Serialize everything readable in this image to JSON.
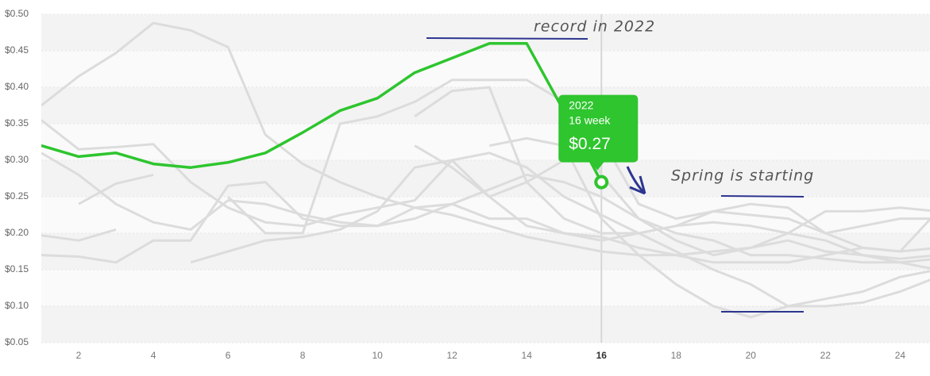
{
  "chart_data": {
    "type": "line",
    "x": [
      1,
      2,
      3,
      4,
      5,
      6,
      7,
      8,
      9,
      10,
      11,
      12,
      13,
      14,
      15,
      16,
      17,
      18,
      19,
      20,
      21,
      22,
      23,
      24,
      25
    ],
    "xlim": [
      1,
      24.8
    ],
    "xticks": [
      2,
      4,
      6,
      8,
      10,
      12,
      14,
      16,
      18,
      20,
      22,
      24
    ],
    "ylim": [
      0.05,
      0.5
    ],
    "yticks": [
      {
        "value": 0.05,
        "label": "$0.05"
      },
      {
        "value": 0.1,
        "label": "$0.10"
      },
      {
        "value": 0.15,
        "label": "$0.15"
      },
      {
        "value": 0.2,
        "label": "$0.20"
      },
      {
        "value": 0.25,
        "label": "$0.25"
      },
      {
        "value": 0.3,
        "label": "$0.30"
      },
      {
        "value": 0.35,
        "label": "$0.35"
      },
      {
        "value": 0.4,
        "label": "$0.40"
      },
      {
        "value": 0.45,
        "label": "$0.45"
      },
      {
        "value": 0.5,
        "label": "$0.50"
      }
    ],
    "grid": true,
    "series": [
      {
        "name": "2022",
        "color": "#2ec52e",
        "values": [
          0.32,
          0.305,
          0.31,
          0.295,
          0.29,
          0.297,
          0.31,
          0.338,
          0.368,
          0.385,
          0.42,
          0.44,
          0.46,
          0.46,
          0.367,
          0.27,
          null,
          null,
          null,
          null,
          null,
          null,
          null,
          null,
          null
        ]
      },
      {
        "color": "#dcdcdc",
        "values": [
          0.375,
          0.415,
          0.447,
          0.488,
          0.478,
          0.455,
          0.335,
          0.295,
          0.27,
          0.25,
          0.235,
          0.225,
          0.21,
          0.195,
          0.185,
          0.175,
          0.17,
          0.17,
          0.175,
          0.18,
          0.19,
          0.175,
          0.17,
          0.165,
          0.17
        ]
      },
      {
        "color": "#dcdcdc",
        "values": [
          0.355,
          0.315,
          0.318,
          0.322,
          0.27,
          0.235,
          0.215,
          0.21,
          0.225,
          0.235,
          0.245,
          0.3,
          0.31,
          0.29,
          0.25,
          0.225,
          0.2,
          0.175,
          0.15,
          0.13,
          0.1,
          0.1,
          0.105,
          0.12,
          0.14
        ]
      },
      {
        "color": "#dcdcdc",
        "values": [
          0.31,
          0.28,
          0.24,
          0.215,
          0.205,
          0.245,
          0.24,
          0.225,
          0.215,
          0.21,
          0.22,
          0.24,
          0.26,
          0.28,
          0.27,
          0.25,
          0.22,
          0.2,
          0.19,
          0.17,
          0.17,
          0.165,
          0.16,
          0.16,
          0.165
        ]
      },
      {
        "color": "#dcdcdc",
        "values": [
          0.197,
          0.19,
          0.205,
          null,
          null,
          null,
          null,
          null,
          null,
          null,
          null,
          null,
          null,
          null,
          null,
          null,
          null,
          null,
          null,
          null,
          null,
          null,
          null,
          null,
          null
        ]
      },
      {
        "color": "#dcdcdc",
        "values": [
          null,
          0.24,
          0.268,
          0.28,
          null,
          null,
          null,
          null,
          null,
          null,
          null,
          null,
          null,
          null,
          null,
          null,
          null,
          null,
          null,
          null,
          null,
          null,
          null,
          null,
          null
        ]
      },
      {
        "color": "#dcdcdc",
        "values": [
          0.17,
          0.168,
          0.16,
          0.19,
          0.19,
          0.265,
          0.27,
          0.22,
          0.21,
          0.21,
          0.235,
          0.24,
          0.22,
          0.22,
          0.2,
          0.19,
          0.2,
          0.21,
          0.23,
          0.24,
          0.235,
          0.2,
          0.18,
          0.175,
          0.23
        ]
      },
      {
        "color": "#dcdcdc",
        "values": [
          null,
          null,
          null,
          null,
          0.16,
          0.175,
          0.19,
          0.195,
          0.205,
          0.23,
          0.29,
          0.3,
          0.25,
          0.21,
          0.2,
          0.195,
          0.18,
          0.17,
          0.16,
          0.16,
          0.16,
          0.17,
          0.18,
          0.175,
          0.18
        ]
      },
      {
        "color": "#dcdcdc",
        "values": [
          null,
          null,
          null,
          null,
          null,
          null,
          null,
          null,
          null,
          null,
          0.32,
          0.29,
          0.25,
          0.27,
          0.3,
          0.33,
          0.24,
          0.22,
          0.23,
          0.225,
          0.22,
          0.2,
          0.21,
          0.22,
          0.22
        ]
      },
      {
        "color": "#dcdcdc",
        "values": [
          null,
          null,
          null,
          null,
          null,
          0.25,
          0.2,
          0.2,
          0.35,
          0.36,
          0.38,
          0.41,
          0.41,
          0.41,
          0.38,
          0.28,
          0.22,
          0.19,
          0.17,
          0.18,
          0.2,
          0.23,
          0.23,
          0.235,
          0.23
        ]
      },
      {
        "color": "#dcdcdc",
        "values": [
          null,
          null,
          null,
          null,
          null,
          null,
          null,
          null,
          null,
          null,
          0.36,
          0.395,
          0.4,
          0.27,
          0.22,
          0.2,
          0.2,
          0.21,
          0.215,
          0.21,
          0.2,
          0.19,
          0.17,
          0.16,
          0.15
        ]
      },
      {
        "color": "#dcdcdc",
        "values": [
          null,
          null,
          null,
          null,
          null,
          null,
          null,
          null,
          null,
          null,
          null,
          null,
          0.32,
          0.33,
          0.32,
          0.22,
          0.17,
          0.13,
          0.1,
          0.085,
          0.1,
          0.11,
          0.12,
          0.14,
          0.15
        ]
      }
    ],
    "tooltip": {
      "series": 0,
      "index": 15,
      "label": "16 week",
      "value_label": "$0.27"
    },
    "annotations": [
      "record in 2022",
      "Spring is starting"
    ]
  }
}
